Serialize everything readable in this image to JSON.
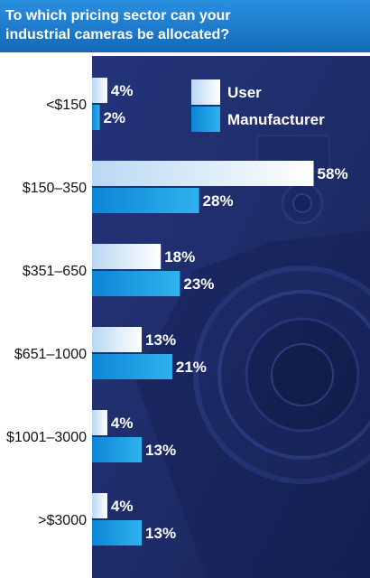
{
  "chart_data": {
    "type": "bar",
    "orientation": "horizontal",
    "title": "To which pricing sector can your industrial cameras be allocated?",
    "categories": [
      "<$150",
      "$150–350",
      "$351–650",
      "$651–1000",
      "$1001–3000",
      ">$3000"
    ],
    "series": [
      {
        "name": "User",
        "values": [
          4,
          58,
          18,
          13,
          4,
          4
        ],
        "labels": [
          "4%",
          "58%",
          "18%",
          "13%",
          "4%",
          "4%"
        ],
        "color": "#e8f2fb"
      },
      {
        "name": "Manufacturer",
        "values": [
          2,
          28,
          23,
          21,
          13,
          13
        ],
        "labels": [
          "2%",
          "28%",
          "23%",
          "21%",
          "13%",
          "13%"
        ],
        "color": "#1a9be0"
      }
    ],
    "xlim": [
      0,
      60
    ],
    "legend": "top-right",
    "grid": false,
    "colors": {
      "title_bg": "#1877c9",
      "panel_bg": "#1f2d6a",
      "panel_bg_dark": "#13204f",
      "value_text": "#ffffff",
      "category_text": "#111111"
    }
  }
}
